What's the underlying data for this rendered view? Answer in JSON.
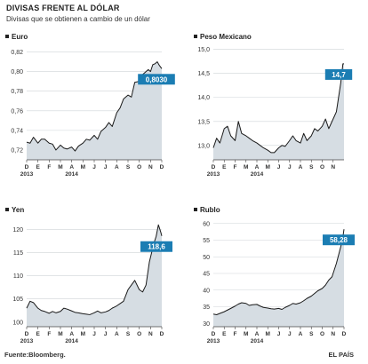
{
  "header": {
    "title": "DIVISAS FRENTE AL DÓLAR",
    "subtitle": "Divisas que se obtienen a cambio de un dólar"
  },
  "footer": {
    "source": "Fuente:Bloomberg.",
    "publisher": "EL PAÍS"
  },
  "colors": {
    "line": "#1a1a1a",
    "area_fill": "#d6dde3",
    "callout": "#1b7db3",
    "grid": "#cfd4d8",
    "text": "#222222"
  },
  "chart_data": [
    {
      "type": "area",
      "title": "Euro",
      "x_labels": [
        "D",
        "E",
        "F",
        "M",
        "A",
        "M",
        "J",
        "J",
        "A",
        "S",
        "O",
        "N",
        "D"
      ],
      "x_year_labels": [
        {
          "label": "2013",
          "index": 0
        },
        {
          "label": "2014",
          "index": 4
        }
      ],
      "ylim": [
        0.71,
        0.825
      ],
      "y_ticks": [
        {
          "v": 0.72,
          "label": "0,72"
        },
        {
          "v": 0.74,
          "label": "0,74"
        },
        {
          "v": 0.76,
          "label": "0,76"
        },
        {
          "v": 0.78,
          "label": "0,78"
        },
        {
          "v": 0.8,
          "label": "0,80"
        },
        {
          "v": 0.82,
          "label": "0,82"
        }
      ],
      "last_value_label": "0,8030",
      "last_value": 0.803,
      "x": [
        0,
        0.3,
        0.6,
        1,
        1.3,
        1.6,
        2,
        2.3,
        2.6,
        3,
        3.3,
        3.6,
        4,
        4.3,
        4.6,
        5,
        5.3,
        5.6,
        6,
        6.3,
        6.6,
        7,
        7.3,
        7.6,
        8,
        8.3,
        8.6,
        9,
        9.3,
        9.6,
        10,
        10.2,
        10.5,
        10.8,
        11,
        11.2,
        11.4,
        11.6,
        11.8,
        12
      ],
      "y": [
        0.728,
        0.727,
        0.733,
        0.727,
        0.731,
        0.731,
        0.727,
        0.726,
        0.72,
        0.725,
        0.722,
        0.721,
        0.723,
        0.719,
        0.724,
        0.727,
        0.731,
        0.73,
        0.735,
        0.731,
        0.739,
        0.743,
        0.748,
        0.744,
        0.758,
        0.763,
        0.772,
        0.776,
        0.774,
        0.789,
        0.79,
        0.796,
        0.799,
        0.802,
        0.8,
        0.807,
        0.808,
        0.81,
        0.806,
        0.803
      ]
    },
    {
      "type": "area",
      "title": "Peso Mexicano",
      "x_labels": [
        "D",
        "E",
        "F",
        "M",
        "A",
        "M",
        "J",
        "J",
        "A",
        "S",
        "O",
        "N"
      ],
      "x_year_labels": [
        {
          "label": "2013",
          "index": 0
        },
        {
          "label": "2014",
          "index": 4
        }
      ],
      "ylim": [
        12.7,
        15.05
      ],
      "y_ticks": [
        {
          "v": 13.0,
          "label": "13,0"
        },
        {
          "v": 13.5,
          "label": "13,5"
        },
        {
          "v": 14.0,
          "label": "14,0"
        },
        {
          "v": 14.5,
          "label": "14,5"
        },
        {
          "v": 15.0,
          "label": "15,0"
        }
      ],
      "last_value_label": "14,7",
      "last_value": 14.7,
      "x": [
        0,
        0.3,
        0.6,
        1,
        1.3,
        1.6,
        2,
        2.3,
        2.6,
        3,
        3.3,
        3.6,
        4,
        4.3,
        4.6,
        5,
        5.3,
        5.6,
        6,
        6.3,
        6.6,
        7,
        7.3,
        7.6,
        8,
        8.3,
        8.6,
        9,
        9.3,
        9.6,
        10,
        10.3,
        10.6,
        10.9,
        11.1,
        11.3,
        11.5,
        11.7,
        11.9,
        12
      ],
      "y": [
        12.95,
        13.15,
        13.05,
        13.35,
        13.4,
        13.2,
        13.1,
        13.5,
        13.25,
        13.2,
        13.15,
        13.1,
        13.05,
        13.0,
        12.95,
        12.9,
        12.85,
        12.85,
        12.95,
        13.0,
        12.98,
        13.1,
        13.2,
        13.1,
        13.05,
        13.25,
        13.1,
        13.2,
        13.35,
        13.3,
        13.4,
        13.55,
        13.35,
        13.5,
        13.6,
        13.7,
        14.0,
        14.3,
        14.7,
        14.7
      ]
    },
    {
      "type": "area",
      "title": "Yen",
      "x_labels": [
        "D",
        "E",
        "F",
        "M",
        "A",
        "M",
        "J",
        "J",
        "A",
        "S",
        "O",
        "N",
        "D"
      ],
      "x_year_labels": [
        {
          "label": "2013",
          "index": 0
        },
        {
          "label": "2014",
          "index": 4
        }
      ],
      "ylim": [
        99,
        122
      ],
      "y_ticks": [
        {
          "v": 100,
          "label": "100"
        },
        {
          "v": 105,
          "label": "105"
        },
        {
          "v": 110,
          "label": "110"
        },
        {
          "v": 115,
          "label": "115"
        },
        {
          "v": 120,
          "label": "120"
        }
      ],
      "last_value_label": "118,6",
      "last_value": 118.6,
      "x": [
        0,
        0.3,
        0.6,
        1,
        1.3,
        1.6,
        2,
        2.3,
        2.6,
        3,
        3.3,
        3.6,
        4,
        4.3,
        4.6,
        5,
        5.3,
        5.6,
        6,
        6.3,
        6.6,
        7,
        7.3,
        7.6,
        8,
        8.3,
        8.6,
        9,
        9.3,
        9.6,
        10,
        10.3,
        10.6,
        10.9,
        11.1,
        11.3,
        11.5,
        11.7,
        11.9,
        12
      ],
      "y": [
        103.0,
        104.5,
        104.2,
        103.0,
        102.5,
        102.3,
        101.9,
        102.3,
        102.0,
        102.3,
        103.0,
        102.8,
        102.4,
        102.1,
        102.0,
        101.8,
        101.7,
        101.6,
        102.0,
        102.4,
        102.0,
        102.2,
        102.5,
        103.0,
        103.5,
        104.0,
        104.5,
        107.0,
        108.0,
        109.0,
        107.0,
        106.5,
        108.0,
        113.0,
        115.0,
        117.0,
        118.5,
        121.0,
        119.5,
        118.6
      ]
    },
    {
      "type": "area",
      "title": "Rublo",
      "x_labels": [
        "D",
        "E",
        "F",
        "M",
        "A",
        "M",
        "J",
        "J",
        "A",
        "S",
        "O",
        "N",
        "D"
      ],
      "x_year_labels": [
        {
          "label": "2013",
          "index": 0
        },
        {
          "label": "2014",
          "index": 4
        }
      ],
      "ylim": [
        29,
        61
      ],
      "y_ticks": [
        {
          "v": 30,
          "label": "30"
        },
        {
          "v": 35,
          "label": "35"
        },
        {
          "v": 40,
          "label": "40"
        },
        {
          "v": 45,
          "label": "45"
        },
        {
          "v": 50,
          "label": "50"
        },
        {
          "v": 55,
          "label": "55"
        },
        {
          "v": 60,
          "label": "60"
        }
      ],
      "last_value_label": "58,28",
      "last_value": 58.28,
      "x": [
        0,
        0.3,
        0.6,
        1,
        1.3,
        1.6,
        2,
        2.3,
        2.6,
        3,
        3.3,
        3.6,
        4,
        4.3,
        4.6,
        5,
        5.3,
        5.6,
        6,
        6.3,
        6.6,
        7,
        7.3,
        7.6,
        8,
        8.3,
        8.6,
        9,
        9.3,
        9.6,
        10,
        10.3,
        10.6,
        10.9,
        11.1,
        11.3,
        11.5,
        11.7,
        11.9,
        12
      ],
      "y": [
        32.8,
        32.6,
        33.0,
        33.5,
        34.0,
        34.5,
        35.2,
        35.8,
        36.2,
        36.0,
        35.4,
        35.6,
        35.7,
        35.2,
        34.8,
        34.6,
        34.4,
        34.3,
        34.5,
        34.2,
        34.8,
        35.4,
        36.0,
        35.8,
        36.2,
        36.8,
        37.5,
        38.2,
        39.0,
        39.8,
        40.5,
        41.5,
        43.0,
        44.0,
        46.0,
        48.0,
        50.5,
        53.0,
        56.0,
        58.28
      ]
    }
  ]
}
